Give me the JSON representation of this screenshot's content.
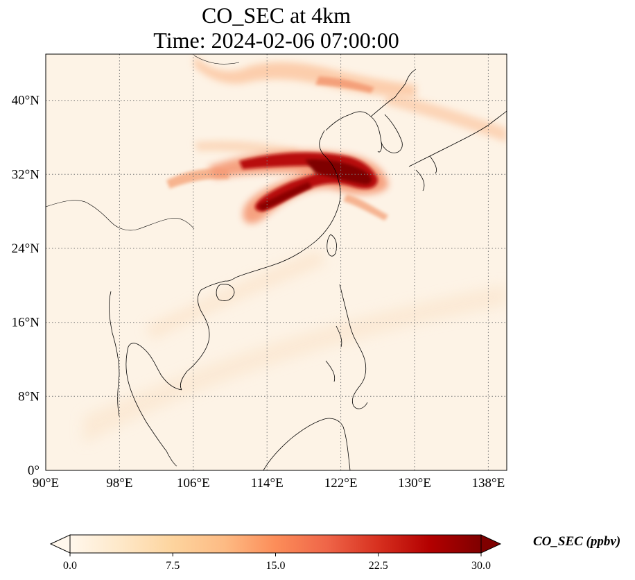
{
  "title": {
    "line1": "CO_SEC at 4km",
    "line2": "Time: 2024-02-06 07:00:00"
  },
  "map": {
    "projection": "PlateCarree",
    "lon_range": [
      90,
      140
    ],
    "lat_range": [
      0,
      45
    ],
    "gridlines": "dotted",
    "lon_ticks": [
      {
        "value": 90,
        "label": "90°E"
      },
      {
        "value": 98,
        "label": "98°E"
      },
      {
        "value": 106,
        "label": "106°E"
      },
      {
        "value": 114,
        "label": "114°E"
      },
      {
        "value": 122,
        "label": "122°E"
      },
      {
        "value": 130,
        "label": "130°E"
      },
      {
        "value": 138,
        "label": "138°E"
      }
    ],
    "lat_ticks": [
      {
        "value": 0,
        "label": "0°"
      },
      {
        "value": 8,
        "label": "8°N"
      },
      {
        "value": 16,
        "label": "16°N"
      },
      {
        "value": 24,
        "label": "24°N"
      },
      {
        "value": 32,
        "label": "32°N"
      },
      {
        "value": 40,
        "label": "40°N"
      }
    ]
  },
  "colorbar": {
    "label": "CO_SEC (ppbv)",
    "min": 0.0,
    "max": 30.0,
    "extend": "both",
    "colormap": "OrRd",
    "colors": [
      "#fff7ec",
      "#fee8c8",
      "#fdd49e",
      "#fdbb84",
      "#fc8d59",
      "#ef6548",
      "#d7301f",
      "#b30000",
      "#7f0000"
    ],
    "ticks": [
      {
        "value": 0.0,
        "label": "0.0"
      },
      {
        "value": 7.5,
        "label": "7.5"
      },
      {
        "value": 15.0,
        "label": "15.0"
      },
      {
        "value": 22.5,
        "label": "22.5"
      },
      {
        "value": 30.0,
        "label": "30.0"
      }
    ]
  }
}
